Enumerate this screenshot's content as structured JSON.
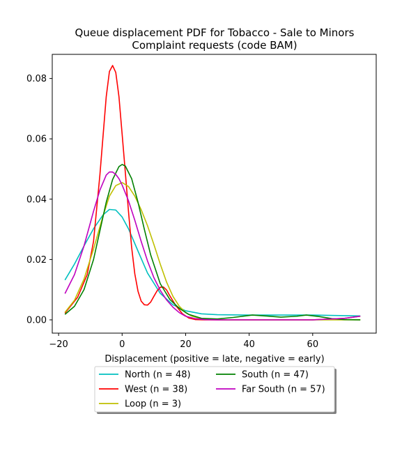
{
  "chart_data": {
    "type": "line",
    "title_line1": "Queue displacement PDF for Tobacco - Sale to Minors",
    "title_line2": "Complaint  requests (code BAM)",
    "xlabel": "Displacement (positive = late, negative = early)",
    "ylabel": "",
    "xlim": [
      -22,
      80
    ],
    "ylim": [
      -0.0044,
      0.088
    ],
    "xticks": [
      -20,
      0,
      20,
      40,
      60
    ],
    "yticks": [
      0.0,
      0.02,
      0.04,
      0.06,
      0.08
    ],
    "ytick_labels": [
      "0.00",
      "0.02",
      "0.04",
      "0.06",
      "0.08"
    ],
    "grid": false,
    "legend_placement": "below",
    "series": [
      {
        "name": "North (n = 48)",
        "color": "#00bfbf",
        "x": [
          -18,
          -15,
          -12,
          -9,
          -6,
          -4,
          -2,
          0,
          2,
          5,
          8,
          12,
          16,
          20,
          25,
          30,
          40,
          50,
          60,
          70,
          75
        ],
        "y": [
          0.0132,
          0.0185,
          0.0245,
          0.0302,
          0.0348,
          0.0366,
          0.0364,
          0.0341,
          0.0302,
          0.0228,
          0.0155,
          0.0088,
          0.005,
          0.003,
          0.002,
          0.0017,
          0.0016,
          0.0016,
          0.0016,
          0.0014,
          0.0013
        ]
      },
      {
        "name": "West (n = 38)",
        "color": "#ff0000",
        "x": [
          -18,
          -14,
          -11,
          -9,
          -7,
          -5,
          -4,
          -3,
          -2,
          -1,
          0,
          1,
          2,
          3,
          4,
          5,
          6,
          7,
          8,
          9,
          10,
          11,
          12,
          13,
          14,
          15,
          17,
          19,
          21,
          23,
          26,
          30,
          40,
          50,
          60,
          70,
          75
        ],
        "y": [
          0.0022,
          0.0075,
          0.015,
          0.026,
          0.048,
          0.074,
          0.0823,
          0.0843,
          0.082,
          0.074,
          0.0616,
          0.049,
          0.036,
          0.024,
          0.0152,
          0.0095,
          0.0062,
          0.005,
          0.0049,
          0.0059,
          0.0078,
          0.0096,
          0.0108,
          0.0109,
          0.0099,
          0.008,
          0.0046,
          0.002,
          0.0006,
          0.0001,
          0.0,
          0.0,
          0.0,
          0.0,
          0.0,
          0.0005,
          0.0012
        ]
      },
      {
        "name": "Loop (n = 3)",
        "color": "#bfbf00",
        "x": [
          -18,
          -15,
          -12,
          -9,
          -6,
          -4,
          -2,
          0,
          2,
          4,
          6,
          8,
          10,
          12,
          14,
          16,
          18,
          20,
          22,
          25,
          28,
          32,
          40,
          50,
          60,
          70,
          75
        ],
        "y": [
          0.0025,
          0.0065,
          0.0135,
          0.0235,
          0.0345,
          0.041,
          0.0445,
          0.0455,
          0.0442,
          0.041,
          0.0365,
          0.0312,
          0.025,
          0.0185,
          0.0125,
          0.0078,
          0.0045,
          0.0024,
          0.0012,
          0.0004,
          0.0001,
          0.0,
          0.0,
          0.0,
          0.0,
          0.0,
          0.0
        ]
      },
      {
        "name": "South (n = 47)",
        "color": "#008000",
        "x": [
          -18,
          -15,
          -12,
          -9,
          -7,
          -5,
          -3,
          -1,
          0,
          1,
          3,
          5,
          7,
          9,
          12,
          15,
          18,
          21,
          25,
          30,
          35,
          41,
          45,
          50,
          55,
          58,
          62,
          66,
          70,
          75
        ],
        "y": [
          0.0018,
          0.0045,
          0.01,
          0.02,
          0.0295,
          0.039,
          0.0465,
          0.0508,
          0.0515,
          0.051,
          0.0468,
          0.039,
          0.03,
          0.0215,
          0.012,
          0.0068,
          0.0038,
          0.0018,
          0.0005,
          0.0003,
          0.0008,
          0.0016,
          0.0013,
          0.0009,
          0.0012,
          0.0016,
          0.0011,
          0.0004,
          0.0001,
          0.0
        ]
      },
      {
        "name": "Far South (n = 57)",
        "color": "#bf00bf",
        "x": [
          -18,
          -15,
          -12,
          -9,
          -7,
          -5,
          -4,
          -3,
          -2,
          -1,
          0,
          2,
          4,
          6,
          8,
          10,
          12,
          14,
          16,
          18,
          20,
          23,
          26,
          30,
          40,
          50,
          60,
          70,
          75
        ],
        "y": [
          0.0087,
          0.015,
          0.0245,
          0.036,
          0.043,
          0.048,
          0.049,
          0.049,
          0.0482,
          0.0468,
          0.0447,
          0.0395,
          0.033,
          0.026,
          0.0195,
          0.014,
          0.0098,
          0.0066,
          0.0042,
          0.0024,
          0.0012,
          0.0004,
          0.0001,
          0.0,
          0.0,
          0.0,
          0.0,
          0.0005,
          0.0012
        ]
      }
    ]
  }
}
